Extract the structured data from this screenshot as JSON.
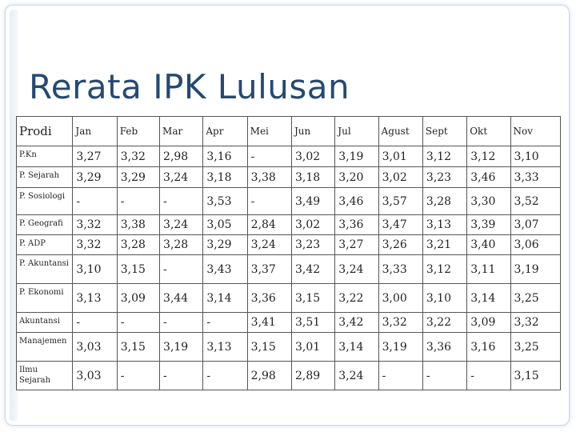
{
  "slide": {
    "title": "Rerata IPK Lulusan"
  },
  "table": {
    "columns": [
      "Prodi",
      "Jan",
      "Feb",
      "Mar",
      "Apr",
      "Mei",
      "Jun",
      "Jul",
      "Agust",
      "Sept",
      "Okt",
      "Nov"
    ],
    "rows": [
      {
        "prodi": "P.Kn",
        "values": [
          "3,27",
          "3,32",
          "2,98",
          "3,16",
          "-",
          "3,02",
          "3,19",
          "3,01",
          "3,12",
          "3,12",
          "3,10"
        ]
      },
      {
        "prodi": "P. Sejarah",
        "values": [
          "3,29",
          "3,29",
          "3,24",
          "3,18",
          "3,38",
          "3,18",
          "3,20",
          "3,02",
          "3,23",
          "3,46",
          "3,33"
        ]
      },
      {
        "prodi": "P. Sosiologi",
        "values": [
          "-",
          "-",
          "-",
          "3,53",
          "-",
          "3,49",
          "3,46",
          "3,57",
          "3,28",
          "3,30",
          "3,52"
        ]
      },
      {
        "prodi": "P. Geografi",
        "values": [
          "3,32",
          "3,38",
          "3,24",
          "3,05",
          "2,84",
          "3,02",
          "3,36",
          "3,47",
          "3,13",
          "3,39",
          "3,07"
        ]
      },
      {
        "prodi": "P. ADP",
        "values": [
          "3,32",
          "3,28",
          "3,28",
          "3,29",
          "3,24",
          "3,23",
          "3,27",
          "3,26",
          "3,21",
          "3,40",
          "3,06"
        ]
      },
      {
        "prodi": "P. Akuntansi",
        "values": [
          "3,10",
          "3,15",
          "-",
          "3,43",
          "3,37",
          "3,42",
          "3,24",
          "3,33",
          "3,12",
          "3,11",
          "3,19"
        ]
      },
      {
        "prodi": "P. Ekonomi",
        "values": [
          "3,13",
          "3,09",
          "3,44",
          "3,14",
          "3,36",
          "3,15",
          "3,22",
          "3,00",
          "3,10",
          "3,14",
          "3,25"
        ]
      },
      {
        "prodi": "Akuntansi",
        "values": [
          "-",
          "-",
          "-",
          "-",
          "3,41",
          "3,51",
          "3,42",
          "3,32",
          "3,22",
          "3,09",
          "3,32"
        ]
      },
      {
        "prodi": "Manajemen",
        "values": [
          "3,03",
          "3,15",
          "3,19",
          "3,13",
          "3,15",
          "3,01",
          "3,14",
          "3,19",
          "3,36",
          "3,16",
          "3,25"
        ]
      },
      {
        "prodi": "Ilmu Sejarah",
        "values": [
          "3,03",
          "-",
          "-",
          "-",
          "2,98",
          "2,89",
          "3,24",
          "-",
          "-",
          "-",
          "3,15"
        ]
      }
    ]
  }
}
